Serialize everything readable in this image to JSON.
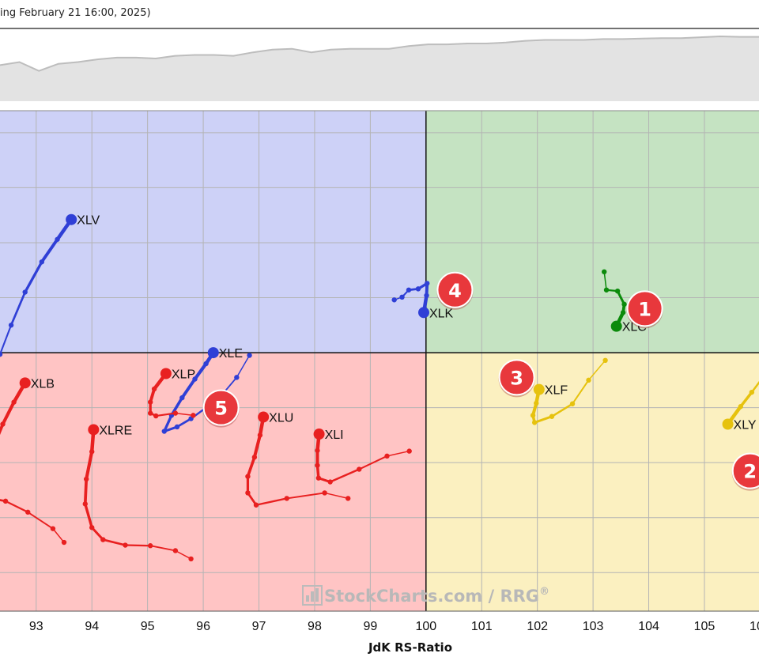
{
  "header": {
    "caption": "ing February 21 16:00, 2025)"
  },
  "colors": {
    "leading": "#c5e3c2",
    "weakening": "#fbf0c0",
    "lagging": "#ffc4c4",
    "improving": "#cdd1f7",
    "strip_fill": "#e3e3e3",
    "strip_line": "#bdbdbd",
    "badge": "#e8383c"
  },
  "watermark": {
    "brand": "StockCharts.com",
    "separator": "/",
    "product": "RRG",
    "mark": "®"
  },
  "chart_data": {
    "type": "scatter",
    "xlabel": "JdK RS-Ratio",
    "ylabel": "",
    "xlim": [
      92.35,
      105.98
    ],
    "ylim": [
      95.3,
      104.4
    ],
    "x_ticks": [
      "93",
      "94",
      "95",
      "96",
      "97",
      "98",
      "99",
      "100",
      "101",
      "102",
      "103",
      "104",
      "105",
      "105"
    ],
    "center": [
      100,
      100
    ],
    "grid": true,
    "strip": [
      0.35,
      0.42,
      0.22,
      0.38,
      0.42,
      0.48,
      0.52,
      0.52,
      0.5,
      0.56,
      0.58,
      0.58,
      0.56,
      0.64,
      0.7,
      0.72,
      0.64,
      0.7,
      0.72,
      0.72,
      0.72,
      0.78,
      0.82,
      0.82,
      0.84,
      0.84,
      0.86,
      0.9,
      0.92,
      0.92,
      0.92,
      0.94,
      0.94,
      0.95,
      0.96,
      0.96,
      0.98,
      1.0,
      0.99,
      0.99
    ],
    "series": [
      {
        "name": "XLC",
        "color": "#0b8a0b",
        "label_pos": "right",
        "points": [
          [
            103.2,
            101.47
          ],
          [
            103.24,
            101.14
          ],
          [
            103.44,
            101.12
          ],
          [
            103.56,
            100.88
          ],
          [
            103.54,
            100.73
          ],
          [
            103.42,
            100.48
          ]
        ]
      },
      {
        "name": "XLK",
        "color": "#2f3fd6",
        "label_pos": "right",
        "points": [
          [
            99.43,
            100.96
          ],
          [
            99.57,
            101.01
          ],
          [
            99.69,
            101.14
          ],
          [
            99.86,
            101.16
          ],
          [
            100.02,
            101.26
          ],
          [
            100.01,
            101.04
          ],
          [
            99.96,
            100.73
          ]
        ]
      },
      {
        "name": "XLV",
        "color": "#2f3fd6",
        "label_pos": "right",
        "points": [
          [
            92.2,
            99.5
          ],
          [
            92.35,
            99.97
          ],
          [
            92.55,
            100.5
          ],
          [
            92.8,
            101.1
          ],
          [
            93.1,
            101.65
          ],
          [
            93.38,
            102.06
          ],
          [
            93.63,
            102.42
          ]
        ]
      },
      {
        "name": "XLE",
        "color": "#2f3fd6",
        "label_pos": "right",
        "points": [
          [
            96.83,
            99.95
          ],
          [
            96.6,
            99.55
          ],
          [
            96.35,
            99.25
          ],
          [
            96.05,
            99.0
          ],
          [
            95.78,
            98.8
          ],
          [
            95.53,
            98.65
          ],
          [
            95.3,
            98.57
          ],
          [
            95.43,
            98.86
          ],
          [
            95.62,
            99.18
          ],
          [
            95.85,
            99.52
          ],
          [
            96.05,
            99.8
          ],
          [
            96.18,
            100.0
          ]
        ]
      },
      {
        "name": "XLF",
        "color": "#e6c20e",
        "label_pos": "right",
        "points": [
          [
            103.22,
            99.86
          ],
          [
            102.92,
            99.5
          ],
          [
            102.63,
            99.07
          ],
          [
            102.26,
            98.84
          ],
          [
            101.95,
            98.73
          ],
          [
            101.92,
            98.86
          ],
          [
            101.98,
            99.08
          ],
          [
            102.03,
            99.33
          ]
        ]
      },
      {
        "name": "XLY",
        "color": "#e6c20e",
        "label_pos": "right",
        "points": [
          [
            106.2,
            99.8
          ],
          [
            106.05,
            99.55
          ],
          [
            105.85,
            99.28
          ],
          [
            105.65,
            99.02
          ],
          [
            105.42,
            98.7
          ]
        ]
      },
      {
        "name": "XLP",
        "color": "#e82020",
        "label_pos": "right",
        "points": [
          [
            95.82,
            98.86
          ],
          [
            95.5,
            98.9
          ],
          [
            95.15,
            98.85
          ],
          [
            95.05,
            98.9
          ],
          [
            95.05,
            99.1
          ],
          [
            95.12,
            99.34
          ],
          [
            95.33,
            99.62
          ]
        ]
      },
      {
        "name": "XLB",
        "color": "#e82020",
        "label_pos": "right",
        "points": [
          [
            93.5,
            96.55
          ],
          [
            93.3,
            96.8
          ],
          [
            92.85,
            97.1
          ],
          [
            92.45,
            97.3
          ],
          [
            92.2,
            97.35
          ],
          [
            92.12,
            97.65
          ],
          [
            92.2,
            98.2
          ],
          [
            92.4,
            98.7
          ],
          [
            92.6,
            99.1
          ],
          [
            92.8,
            99.45
          ]
        ]
      },
      {
        "name": "XLRE",
        "color": "#e82020",
        "label_pos": "right",
        "points": [
          [
            95.78,
            96.25
          ],
          [
            95.5,
            96.4
          ],
          [
            95.05,
            96.49
          ],
          [
            94.6,
            96.5
          ],
          [
            94.2,
            96.6
          ],
          [
            94.0,
            96.82
          ],
          [
            93.88,
            97.25
          ],
          [
            93.9,
            97.7
          ],
          [
            94.0,
            98.2
          ],
          [
            94.03,
            98.6
          ]
        ]
      },
      {
        "name": "XLU",
        "color": "#e82020",
        "label_pos": "right",
        "points": [
          [
            98.6,
            97.35
          ],
          [
            98.18,
            97.45
          ],
          [
            97.5,
            97.35
          ],
          [
            96.95,
            97.23
          ],
          [
            96.8,
            97.45
          ],
          [
            96.8,
            97.75
          ],
          [
            96.92,
            98.1
          ],
          [
            97.02,
            98.5
          ],
          [
            97.08,
            98.83
          ]
        ]
      },
      {
        "name": "XLI",
        "color": "#e82020",
        "label_pos": "right",
        "points": [
          [
            99.7,
            98.21
          ],
          [
            99.3,
            98.12
          ],
          [
            98.8,
            97.88
          ],
          [
            98.28,
            97.65
          ],
          [
            98.07,
            97.72
          ],
          [
            98.05,
            97.95
          ],
          [
            98.05,
            98.22
          ],
          [
            98.08,
            98.52
          ]
        ]
      }
    ],
    "annotations": [
      {
        "text": "1",
        "x": 103.93,
        "y": 100.8
      },
      {
        "text": "2",
        "x": 105.82,
        "y": 97.85
      },
      {
        "text": "3",
        "x": 101.63,
        "y": 99.55
      },
      {
        "text": "4",
        "x": 100.52,
        "y": 101.14
      },
      {
        "text": "5",
        "x": 96.32,
        "y": 99.0
      }
    ]
  }
}
